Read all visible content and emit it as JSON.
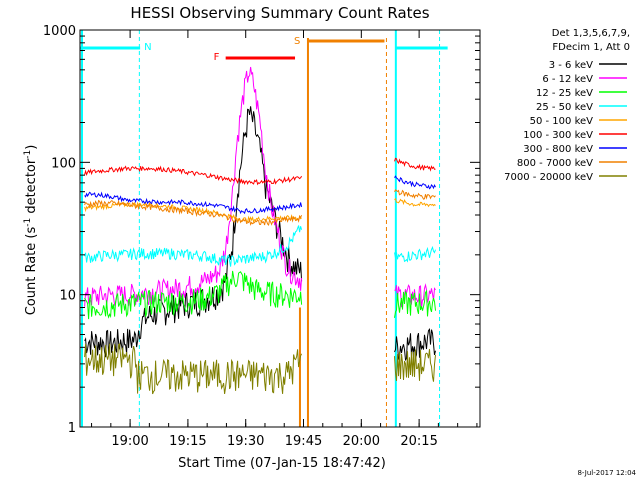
{
  "chart_data": {
    "type": "line",
    "title": "HESSI Observing Summary Count Rates",
    "xlabel": "Start Time (07-Jan-15 18:47:42)",
    "ylabel_main": "Count Rate (s",
    "ylabel_sup1": "-1",
    "ylabel_mid": " detector",
    "ylabel_sup2": "-1",
    "ylabel_end": ")",
    "footer": "8-Jul-2017 12:04",
    "xlim_min": [
      18.7,
      20.43
    ],
    "ylim": [
      1,
      1000
    ],
    "y_scale": "log",
    "x_ticks": [
      {
        "v": 18.9167,
        "label": "19:00"
      },
      {
        "v": 19.1667,
        "label": "19:15"
      },
      {
        "v": 19.4167,
        "label": "19:30"
      },
      {
        "v": 19.6667,
        "label": "19:45"
      },
      {
        "v": 19.9167,
        "label": "20:00"
      },
      {
        "v": 20.1667,
        "label": "20:15"
      }
    ],
    "y_ticks": [
      {
        "v": 1,
        "label": "1"
      },
      {
        "v": 10,
        "label": "10"
      },
      {
        "v": 100,
        "label": "100"
      },
      {
        "v": 1000,
        "label": "1000"
      }
    ],
    "legend": {
      "header": [
        "Det 1,3,5,6,7,9,",
        "FDecim 1, Att 0"
      ],
      "placement": "right"
    },
    "series": [
      {
        "name": "3 - 6 keV",
        "color": "#000000",
        "points": [
          [
            18.72,
            4.5
          ],
          [
            18.78,
            4.4
          ],
          [
            18.84,
            4.3
          ],
          [
            18.88,
            4.5
          ],
          [
            18.94,
            4.6
          ],
          [
            18.96,
            6.0
          ],
          [
            19.0,
            7.0
          ],
          [
            19.05,
            7.5
          ],
          [
            19.1,
            8.0
          ],
          [
            19.15,
            8.5
          ],
          [
            19.2,
            9.0
          ],
          [
            19.25,
            9.5
          ],
          [
            19.3,
            10.5
          ],
          [
            19.33,
            13
          ],
          [
            19.36,
            25
          ],
          [
            19.38,
            60
          ],
          [
            19.41,
            150
          ],
          [
            19.43,
            235
          ],
          [
            19.45,
            200
          ],
          [
            19.48,
            120
          ],
          [
            19.5,
            70
          ],
          [
            19.53,
            45
          ],
          [
            19.56,
            30
          ],
          [
            19.58,
            24
          ],
          [
            19.6,
            19
          ],
          [
            19.63,
            16
          ],
          [
            19.66,
            15
          ]
        ],
        "points2": [
          [
            20.06,
            4.0
          ],
          [
            20.1,
            4.2
          ],
          [
            20.15,
            4.3
          ],
          [
            20.2,
            4.5
          ],
          [
            20.24,
            4.4
          ]
        ]
      },
      {
        "name": "6 - 12 keV",
        "color": "#ff00ff",
        "points": [
          [
            18.72,
            9.5
          ],
          [
            18.78,
            9.8
          ],
          [
            18.84,
            10.0
          ],
          [
            18.9,
            10.0
          ],
          [
            18.94,
            10.2
          ],
          [
            19.0,
            10.5
          ],
          [
            19.05,
            10.8
          ],
          [
            19.1,
            11.0
          ],
          [
            19.15,
            11.5
          ],
          [
            19.2,
            12.0
          ],
          [
            19.25,
            13
          ],
          [
            19.3,
            15
          ],
          [
            19.33,
            22
          ],
          [
            19.36,
            60
          ],
          [
            19.38,
            150
          ],
          [
            19.41,
            350
          ],
          [
            19.43,
            490
          ],
          [
            19.45,
            400
          ],
          [
            19.48,
            200
          ],
          [
            19.5,
            95
          ],
          [
            19.53,
            45
          ],
          [
            19.56,
            28
          ],
          [
            19.58,
            20
          ],
          [
            19.6,
            16
          ],
          [
            19.63,
            14
          ],
          [
            19.66,
            13
          ]
        ],
        "points2": [
          [
            20.06,
            10
          ],
          [
            20.1,
            10
          ],
          [
            20.15,
            9.8
          ],
          [
            20.2,
            9.9
          ],
          [
            20.24,
            9.9
          ]
        ]
      },
      {
        "name": "12 - 25 keV",
        "color": "#00ff00",
        "points": [
          [
            18.72,
            8.2
          ],
          [
            18.78,
            8.3
          ],
          [
            18.84,
            8.4
          ],
          [
            18.9,
            8.6
          ],
          [
            18.94,
            8.7
          ],
          [
            19.0,
            8.8
          ],
          [
            19.05,
            8.9
          ],
          [
            19.1,
            9.0
          ],
          [
            19.15,
            9.0
          ],
          [
            19.2,
            9.2
          ],
          [
            19.25,
            9.5
          ],
          [
            19.3,
            10.5
          ],
          [
            19.33,
            12
          ],
          [
            19.36,
            13
          ],
          [
            19.38,
            14
          ],
          [
            19.4,
            13
          ],
          [
            19.43,
            12
          ],
          [
            19.46,
            11
          ],
          [
            19.5,
            10.5
          ],
          [
            19.55,
            10.2
          ],
          [
            19.6,
            10.0
          ],
          [
            19.66,
            10.0
          ]
        ],
        "points2": [
          [
            20.06,
            8.5
          ],
          [
            20.1,
            8.6
          ],
          [
            20.15,
            8.7
          ],
          [
            20.2,
            8.8
          ],
          [
            20.24,
            8.8
          ]
        ]
      },
      {
        "name": "25 - 50 keV",
        "color": "#00ffff",
        "points": [
          [
            18.72,
            19
          ],
          [
            18.78,
            19.5
          ],
          [
            18.84,
            20
          ],
          [
            18.9,
            20
          ],
          [
            18.94,
            20.5
          ],
          [
            19.0,
            20.5
          ],
          [
            19.05,
            20.5
          ],
          [
            19.1,
            20.5
          ],
          [
            19.15,
            20
          ],
          [
            19.2,
            20
          ],
          [
            19.25,
            19.5
          ],
          [
            19.3,
            18.5
          ],
          [
            19.35,
            18
          ],
          [
            19.4,
            18.5
          ],
          [
            19.45,
            19
          ],
          [
            19.5,
            19.5
          ],
          [
            19.55,
            21
          ],
          [
            19.6,
            24
          ],
          [
            19.63,
            28
          ],
          [
            19.66,
            33
          ]
        ],
        "points2": [
          [
            20.06,
            19
          ],
          [
            20.1,
            19.5
          ],
          [
            20.15,
            20
          ],
          [
            20.2,
            20.5
          ],
          [
            20.24,
            21
          ]
        ]
      },
      {
        "name": "50 - 100 keV",
        "color": "#ffa500",
        "points": [
          [
            18.72,
            45
          ],
          [
            18.78,
            46
          ],
          [
            18.84,
            47
          ],
          [
            18.9,
            48
          ],
          [
            18.94,
            48
          ],
          [
            19.0,
            48
          ],
          [
            19.05,
            47
          ],
          [
            19.1,
            46
          ],
          [
            19.15,
            45
          ],
          [
            19.2,
            44
          ],
          [
            19.25,
            43
          ],
          [
            19.3,
            41
          ],
          [
            19.35,
            39
          ],
          [
            19.4,
            37
          ],
          [
            19.45,
            37
          ],
          [
            19.5,
            37.5
          ],
          [
            19.55,
            38
          ],
          [
            19.6,
            38
          ],
          [
            19.63,
            38
          ],
          [
            19.66,
            38
          ]
        ],
        "points2": [
          [
            20.06,
            52
          ],
          [
            20.1,
            50
          ],
          [
            20.15,
            48
          ],
          [
            20.2,
            48
          ],
          [
            20.24,
            48
          ]
        ]
      },
      {
        "name": "100 - 300 keV",
        "color": "#ff0000",
        "points": [
          [
            18.72,
            83
          ],
          [
            18.78,
            86
          ],
          [
            18.84,
            88
          ],
          [
            18.9,
            90
          ],
          [
            18.94,
            90
          ],
          [
            19.0,
            90
          ],
          [
            19.05,
            89
          ],
          [
            19.1,
            87
          ],
          [
            19.15,
            85
          ],
          [
            19.2,
            82
          ],
          [
            19.25,
            80
          ],
          [
            19.3,
            77
          ],
          [
            19.35,
            74
          ],
          [
            19.4,
            72
          ],
          [
            19.45,
            71
          ],
          [
            19.5,
            71
          ],
          [
            19.55,
            72
          ],
          [
            19.6,
            74
          ],
          [
            19.63,
            75
          ],
          [
            19.66,
            76
          ]
        ],
        "points2": [
          [
            20.06,
            105
          ],
          [
            20.1,
            98
          ],
          [
            20.15,
            93
          ],
          [
            20.2,
            90
          ],
          [
            20.24,
            90
          ]
        ]
      },
      {
        "name": "300 - 800 keV",
        "color": "#0000ff",
        "points": [
          [
            18.72,
            57
          ],
          [
            18.78,
            57
          ],
          [
            18.84,
            55
          ],
          [
            18.9,
            52
          ],
          [
            18.94,
            51
          ],
          [
            19.0,
            51
          ],
          [
            19.05,
            50
          ],
          [
            19.1,
            50
          ],
          [
            19.15,
            50
          ],
          [
            19.2,
            49
          ],
          [
            19.25,
            48
          ],
          [
            19.3,
            47
          ],
          [
            19.35,
            45
          ],
          [
            19.4,
            43
          ],
          [
            19.45,
            43
          ],
          [
            19.5,
            44
          ],
          [
            19.55,
            45
          ],
          [
            19.6,
            46
          ],
          [
            19.63,
            47
          ],
          [
            19.66,
            48
          ]
        ],
        "points2": [
          [
            20.06,
            78
          ],
          [
            20.1,
            72
          ],
          [
            20.15,
            68
          ],
          [
            20.2,
            66
          ],
          [
            20.24,
            66
          ]
        ]
      },
      {
        "name": "800 - 7000 keV",
        "color": "#f08000",
        "points": [
          [
            18.72,
            48
          ],
          [
            18.78,
            49
          ],
          [
            18.84,
            49
          ],
          [
            18.9,
            48
          ],
          [
            18.94,
            47
          ],
          [
            19.0,
            46
          ],
          [
            19.05,
            45
          ],
          [
            19.1,
            44
          ],
          [
            19.15,
            43
          ],
          [
            19.2,
            42
          ],
          [
            19.25,
            41
          ],
          [
            19.3,
            40
          ],
          [
            19.35,
            38
          ],
          [
            19.4,
            36
          ],
          [
            19.45,
            35
          ],
          [
            19.5,
            35
          ],
          [
            19.55,
            36
          ],
          [
            19.6,
            37
          ],
          [
            19.63,
            37
          ],
          [
            19.66,
            38
          ]
        ],
        "points2": [
          [
            20.06,
            62
          ],
          [
            20.1,
            58
          ],
          [
            20.15,
            56
          ],
          [
            20.2,
            55
          ],
          [
            20.24,
            55
          ]
        ]
      },
      {
        "name": "7000 - 20000 keV",
        "color": "#808000",
        "points": [
          [
            18.72,
            3.3
          ],
          [
            18.78,
            3.3
          ],
          [
            18.84,
            3.3
          ],
          [
            18.9,
            3.3
          ],
          [
            18.94,
            3.2
          ],
          [
            18.95,
            2.5
          ],
          [
            19.0,
            2.5
          ],
          [
            19.1,
            2.5
          ],
          [
            19.2,
            2.5
          ],
          [
            19.3,
            2.5
          ],
          [
            19.4,
            2.5
          ],
          [
            19.5,
            2.5
          ],
          [
            19.6,
            2.5
          ],
          [
            19.63,
            3.0
          ],
          [
            19.66,
            3.2
          ]
        ],
        "points2": [
          [
            20.06,
            3.0
          ],
          [
            20.1,
            3.0
          ],
          [
            20.15,
            3.0
          ],
          [
            20.2,
            3.0
          ],
          [
            20.24,
            3.0
          ]
        ]
      }
    ],
    "annotations": {
      "night_label": "N",
      "flare_label": "F",
      "saa_label": "S",
      "night_color": "#00ffff",
      "flare_color": "#ff0000",
      "saa_color": "#f08000"
    }
  }
}
